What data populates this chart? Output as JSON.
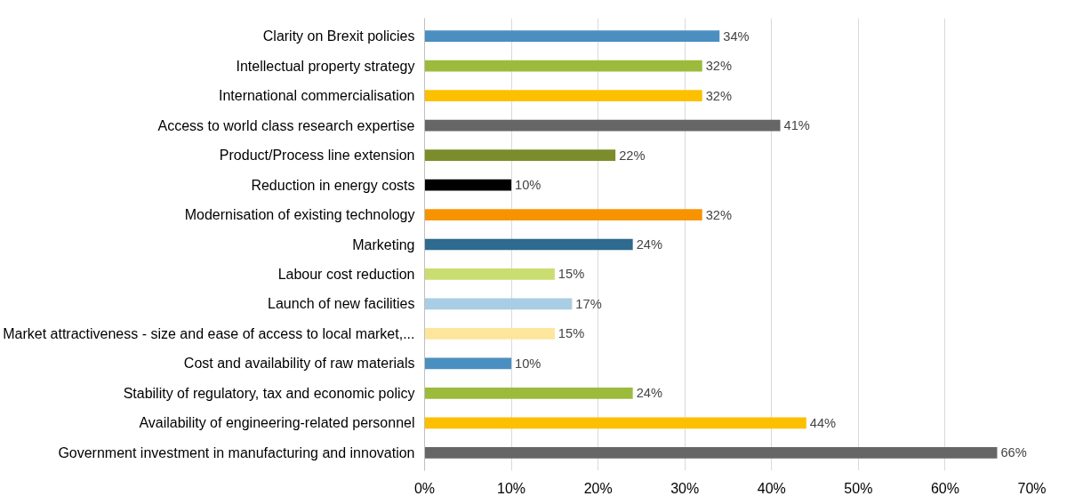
{
  "chart_data": {
    "type": "bar",
    "orientation": "horizontal",
    "categories": [
      "Clarity on Brexit policies",
      "Intellectual property strategy",
      "International commercialisation",
      "Access to world class research expertise",
      "Product/Process line extension",
      "Reduction in energy costs",
      "Modernisation of existing technology",
      "Marketing",
      "Labour cost reduction",
      "Launch of new facilities",
      "Market attractiveness - size and ease of access to local market,...",
      "Cost and availability of raw materials",
      "Stability of regulatory, tax and economic policy",
      "Availability of engineering-related personnel",
      "Government investment in manufacturing and innovation"
    ],
    "values": [
      34,
      32,
      32,
      41,
      22,
      10,
      32,
      24,
      15,
      17,
      15,
      10,
      24,
      44,
      66
    ],
    "value_labels": [
      "34%",
      "32%",
      "32%",
      "41%",
      "22%",
      "10%",
      "32%",
      "24%",
      "15%",
      "17%",
      "15%",
      "10%",
      "24%",
      "44%",
      "66%"
    ],
    "colors": [
      "#4a8fc0",
      "#9cbb3c",
      "#fcc000",
      "#666666",
      "#7b8c2a",
      "#000000",
      "#f79300",
      "#2f6a8f",
      "#cadd70",
      "#a9cde4",
      "#fde59c",
      "#4a8fc0",
      "#9cbb3c",
      "#fcc000",
      "#666666"
    ],
    "xlim": [
      0,
      70
    ],
    "xticks": [
      {
        "value": 0,
        "label": "0%"
      },
      {
        "value": 10,
        "label": "10%"
      },
      {
        "value": 20,
        "label": "20%"
      },
      {
        "value": 30,
        "label": "30%"
      },
      {
        "value": 40,
        "label": "40%"
      },
      {
        "value": 50,
        "label": "50%"
      },
      {
        "value": 60,
        "label": "60%"
      },
      {
        "value": 70,
        "label": "70%"
      }
    ],
    "grid": "x"
  }
}
